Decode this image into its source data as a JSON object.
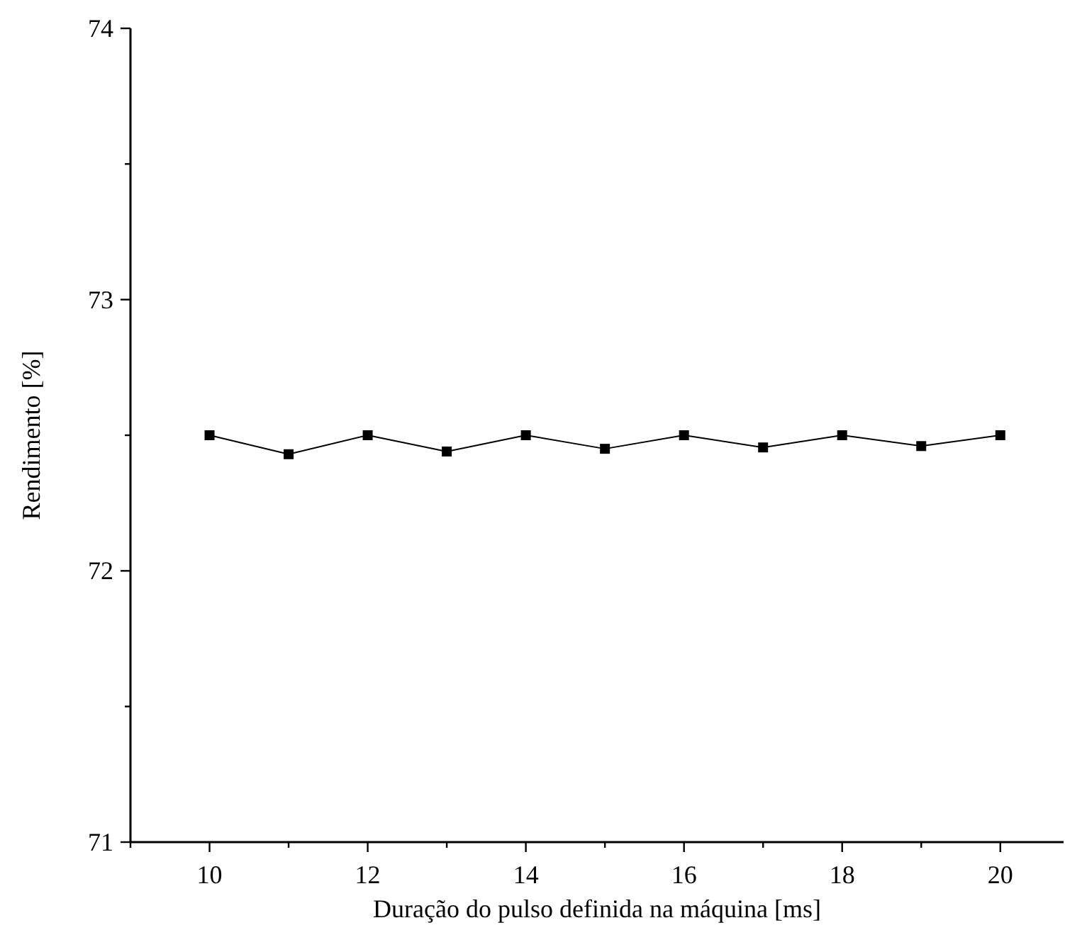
{
  "chart_data": {
    "type": "line",
    "xlabel": "Duração do pulso definida na máquina [ms]",
    "ylabel": "Rendimento [%]",
    "x": [
      10,
      11,
      12,
      13,
      14,
      15,
      16,
      17,
      18,
      19,
      20
    ],
    "series": [
      {
        "color": "#000000",
        "values": [
          72.5,
          72.43,
          72.5,
          72.44,
          72.5,
          72.45,
          72.5,
          72.455,
          72.5,
          72.46,
          72.5
        ]
      }
    ],
    "xlim": [
      9,
      20.8
    ],
    "xticks": [
      {
        "value": 9,
        "label": null
      },
      10,
      {
        "value": 11,
        "label": null
      },
      12,
      {
        "value": 13,
        "label": null
      },
      14,
      {
        "value": 15,
        "label": null
      },
      16,
      {
        "value": 17,
        "label": null
      },
      18,
      {
        "value": 19,
        "label": null
      },
      20
    ],
    "ylim": [
      71,
      74
    ],
    "yticks": [
      71,
      {
        "value": 71.5,
        "label": null
      },
      72,
      {
        "value": 72.5,
        "label": null
      },
      73,
      {
        "value": 73.5,
        "label": null
      },
      74
    ],
    "grid": false,
    "marker": "square",
    "line_style": "solid"
  }
}
